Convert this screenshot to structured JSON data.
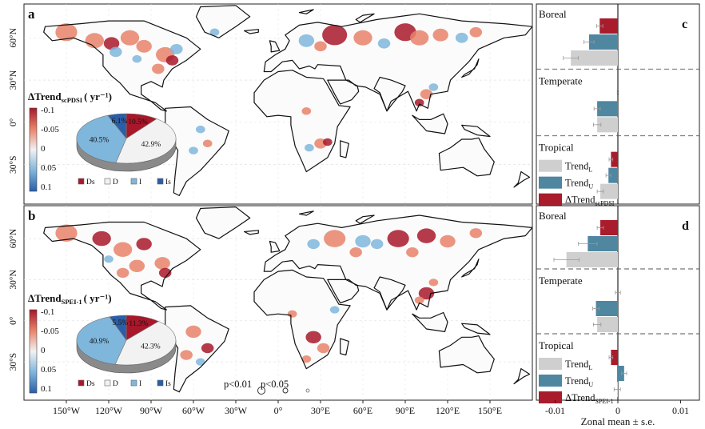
{
  "colors": {
    "strong_dry": "#a8182a",
    "dry": "#e8826a",
    "neutral": "#f2f2f2",
    "wet": "#7fb6dc",
    "strong_wet": "#2a5ea8",
    "trend_l": "#cfcfcf",
    "trend_u": "#4f86a0",
    "delta": "#a81c2c",
    "land_outline": "#111111"
  },
  "maps": [
    {
      "panel_label": "a",
      "colorbar_title_main": "ΔTrend",
      "colorbar_title_sub": "scPDSI",
      "colorbar_title_unit": "( yr⁻¹)",
      "colorbar_ticks": [
        "-0.1",
        "-0.05",
        "0",
        "0.05",
        "0.1"
      ],
      "pie": {
        "slices": [
          {
            "key": "Ds",
            "value": 10.5,
            "label": "10.5%"
          },
          {
            "key": "D",
            "value": 42.9,
            "label": "42.9%"
          },
          {
            "key": "I",
            "value": 40.5,
            "label": "40.5%"
          },
          {
            "key": "Is",
            "value": 6.1,
            "label": "6.1%"
          }
        ]
      }
    },
    {
      "panel_label": "b",
      "colorbar_title_main": "ΔTrend",
      "colorbar_title_sub": "SPEI-1",
      "colorbar_title_unit": "( yr⁻¹)",
      "colorbar_ticks": [
        "-0.1",
        "-0.05",
        "0",
        "0.05",
        "0.1"
      ],
      "pie": {
        "slices": [
          {
            "key": "Ds",
            "value": 11.3,
            "label": "11.3%"
          },
          {
            "key": "D",
            "value": 42.3,
            "label": "42.3%"
          },
          {
            "key": "I",
            "value": 40.9,
            "label": "40.9%"
          },
          {
            "key": "Is",
            "value": 5.5,
            "label": "5.5%"
          }
        ]
      }
    }
  ],
  "map_axes": {
    "lat_labels": [
      "60°N",
      "30°N",
      "0°",
      "30°S"
    ],
    "lon_labels": [
      "150°W",
      "120°W",
      "90°W",
      "60°W",
      "30°W",
      "0°",
      "30°E",
      "60°E",
      "90°E",
      "120°E",
      "150°E"
    ]
  },
  "significance_legend": {
    "p001": "p<0.01",
    "p005": "p<0.05"
  },
  "chart_data": [
    {
      "type": "bar",
      "panel_label": "c",
      "orientation": "horizontal",
      "xlabel": "Zonal mean ± s.e.",
      "xlim": [
        -0.013,
        0.013
      ],
      "xticks": [
        "-0.01",
        "0",
        "0.01"
      ],
      "zones": [
        "Boreal",
        "Temperate",
        "Tropical"
      ],
      "series": [
        {
          "name": "Trend",
          "sub": "L",
          "key": "trend_l",
          "values": [
            -0.0075,
            -0.0033,
            -0.0028
          ],
          "errors": [
            0.0012,
            0.0006,
            0.0005
          ]
        },
        {
          "name": "Trend",
          "sub": "U",
          "key": "trend_u",
          "values": [
            -0.0046,
            -0.0033,
            -0.0015
          ],
          "errors": [
            0.0008,
            0.0005,
            0.0004
          ]
        },
        {
          "name": "ΔTrend",
          "sub": "scPDSI",
          "key": "delta",
          "values": [
            -0.0029,
            0.0,
            -0.0011
          ],
          "errors": [
            0.0005,
            0.0001,
            0.0003
          ]
        }
      ]
    },
    {
      "type": "bar",
      "panel_label": "d",
      "orientation": "horizontal",
      "xlabel": "Zonal mean ± s.e.",
      "xlim": [
        -0.013,
        0.013
      ],
      "xticks": [
        "-0.01",
        "0",
        "0.01"
      ],
      "zones": [
        "Boreal",
        "Temperate",
        "Tropical"
      ],
      "series": [
        {
          "name": "Trend",
          "sub": "L",
          "key": "trend_l",
          "values": [
            -0.0082,
            -0.0033,
            -0.0001
          ],
          "errors": [
            0.002,
            0.0006,
            0.0005
          ]
        },
        {
          "name": "Trend",
          "sub": "U",
          "key": "trend_u",
          "values": [
            -0.0048,
            -0.0035,
            0.001
          ],
          "errors": [
            0.0015,
            0.0005,
            0.0004
          ]
        },
        {
          "name": "ΔTrend",
          "sub": "SPEI-1",
          "key": "delta",
          "values": [
            -0.0028,
            0.0,
            -0.0011
          ],
          "errors": [
            0.0005,
            0.0004,
            0.0003
          ]
        }
      ]
    }
  ]
}
